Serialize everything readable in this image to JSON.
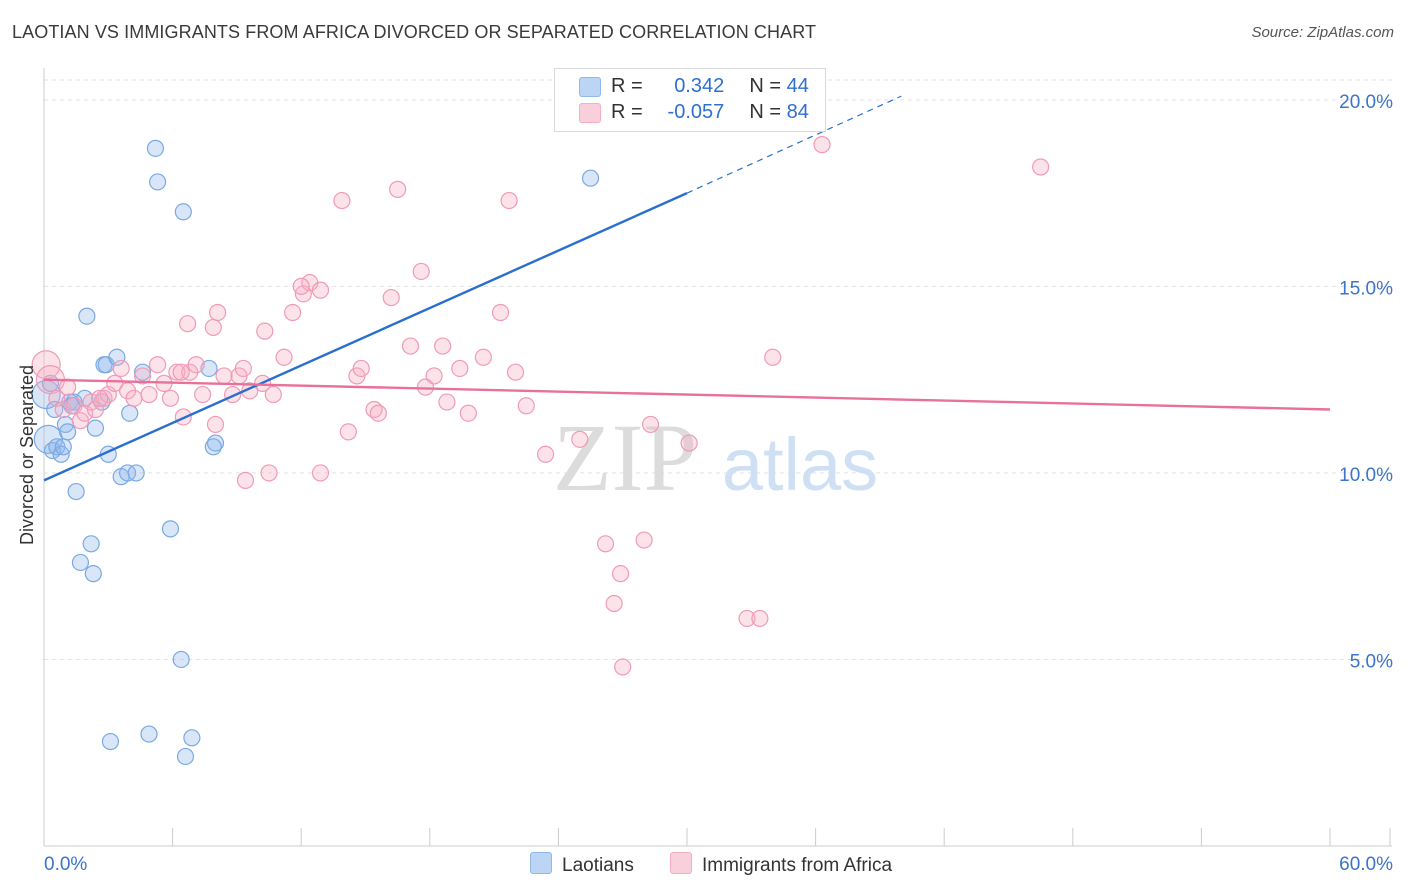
{
  "title": "LAOTIAN VS IMMIGRANTS FROM AFRICA DIVORCED OR SEPARATED CORRELATION CHART",
  "source": "Source: ZipAtlas.com",
  "watermark": {
    "zip": "ZIP",
    "atlas": "atlas"
  },
  "legend": {
    "r_label": "R =",
    "n_label": "N =",
    "rows": [
      {
        "r": "0.342",
        "n": "44"
      },
      {
        "r": "-0.057",
        "n": "84"
      }
    ]
  },
  "chart_data": {
    "type": "scatter",
    "title": "LAOTIAN VS IMMIGRANTS FROM AFRICA DIVORCED OR SEPARATED CORRELATION CHART",
    "ylabel": "Divorced or Separated",
    "xlabel": "",
    "xlim": [
      0,
      60
    ],
    "ylim": [
      0,
      20.8
    ],
    "x_tick_labels": [
      "0.0%",
      "60.0%"
    ],
    "y_ticks": [
      5,
      10,
      15,
      20
    ],
    "y_tick_labels": [
      "5.0%",
      "10.0%",
      "15.0%",
      "20.0%"
    ],
    "grid": true,
    "legend_position": "bottom",
    "series": [
      {
        "name": "Laotians",
        "color": "#8fb8ec",
        "line_color": "#2a6fcf",
        "trend": {
          "x0": 0,
          "y0": 9.8,
          "x1": 30,
          "y1": 17.5,
          "dashed_to_x": 40,
          "dashed_to_y": 20.1
        },
        "points": [
          [
            0.1,
            12.1
          ],
          [
            0.2,
            10.9
          ],
          [
            0.4,
            10.6
          ],
          [
            0.5,
            11.7
          ],
          [
            0.6,
            10.7
          ],
          [
            0.8,
            10.5
          ],
          [
            0.9,
            10.7
          ],
          [
            1.0,
            11.3
          ],
          [
            1.1,
            11.1
          ],
          [
            1.2,
            11.9
          ],
          [
            1.4,
            11.9
          ],
          [
            1.5,
            9.5
          ],
          [
            1.7,
            7.6
          ],
          [
            1.9,
            12.0
          ],
          [
            2.0,
            14.2
          ],
          [
            2.2,
            8.1
          ],
          [
            2.3,
            7.3
          ],
          [
            2.4,
            11.2
          ],
          [
            2.7,
            11.9
          ],
          [
            2.8,
            12.9
          ],
          [
            2.9,
            12.9
          ],
          [
            3.0,
            10.5
          ],
          [
            3.4,
            13.1
          ],
          [
            3.6,
            9.9
          ],
          [
            3.9,
            10.0
          ],
          [
            4.3,
            10.0
          ],
          [
            4.0,
            11.6
          ],
          [
            4.6,
            12.7
          ],
          [
            3.1,
            2.8
          ],
          [
            5.2,
            18.7
          ],
          [
            5.3,
            17.8
          ],
          [
            5.9,
            8.5
          ],
          [
            6.4,
            5.0
          ],
          [
            6.5,
            17.0
          ],
          [
            6.6,
            2.4
          ],
          [
            6.9,
            2.9
          ],
          [
            8.0,
            10.8
          ],
          [
            7.9,
            10.7
          ],
          [
            7.7,
            12.8
          ],
          [
            4.9,
            3.0
          ],
          [
            25.5,
            17.9
          ],
          [
            26.6,
            20.0
          ],
          [
            1.3,
            11.8
          ],
          [
            0.3,
            12.4
          ]
        ]
      },
      {
        "name": "Immigrants from Africa",
        "color": "#f5aec4",
        "line_color": "#e8719a",
        "trend": {
          "x0": 0,
          "y0": 12.5,
          "x1": 60,
          "y1": 11.7
        },
        "points": [
          [
            0.1,
            12.9
          ],
          [
            0.3,
            12.5
          ],
          [
            0.6,
            12.0
          ],
          [
            0.9,
            11.7
          ],
          [
            1.1,
            12.3
          ],
          [
            1.4,
            11.8
          ],
          [
            1.7,
            11.4
          ],
          [
            1.9,
            11.6
          ],
          [
            2.2,
            11.9
          ],
          [
            2.4,
            11.7
          ],
          [
            2.8,
            12.0
          ],
          [
            3.0,
            12.1
          ],
          [
            3.3,
            12.4
          ],
          [
            3.6,
            12.8
          ],
          [
            3.9,
            12.2
          ],
          [
            4.2,
            12.0
          ],
          [
            4.6,
            12.6
          ],
          [
            4.9,
            12.1
          ],
          [
            5.3,
            12.9
          ],
          [
            5.6,
            12.4
          ],
          [
            5.9,
            12.0
          ],
          [
            6.2,
            12.7
          ],
          [
            6.5,
            11.5
          ],
          [
            6.8,
            12.7
          ],
          [
            7.1,
            12.9
          ],
          [
            7.4,
            12.1
          ],
          [
            6.7,
            14.0
          ],
          [
            7.9,
            13.9
          ],
          [
            8.1,
            14.3
          ],
          [
            8.4,
            12.6
          ],
          [
            8.8,
            12.1
          ],
          [
            9.1,
            12.6
          ],
          [
            9.3,
            12.8
          ],
          [
            9.6,
            12.2
          ],
          [
            10.2,
            12.4
          ],
          [
            10.7,
            12.1
          ],
          [
            10.3,
            13.8
          ],
          [
            11.2,
            13.1
          ],
          [
            11.6,
            14.3
          ],
          [
            12.1,
            14.8
          ],
          [
            12.4,
            15.1
          ],
          [
            12.9,
            14.9
          ],
          [
            13.9,
            17.3
          ],
          [
            14.6,
            12.6
          ],
          [
            14.8,
            12.8
          ],
          [
            15.4,
            11.7
          ],
          [
            15.6,
            11.6
          ],
          [
            16.2,
            14.7
          ],
          [
            16.5,
            17.6
          ],
          [
            17.1,
            13.4
          ],
          [
            17.6,
            15.4
          ],
          [
            17.8,
            12.3
          ],
          [
            18.2,
            12.6
          ],
          [
            18.6,
            13.4
          ],
          [
            18.8,
            11.9
          ],
          [
            19.4,
            12.8
          ],
          [
            19.8,
            11.6
          ],
          [
            20.5,
            13.1
          ],
          [
            21.3,
            14.3
          ],
          [
            21.7,
            17.3
          ],
          [
            22.0,
            12.7
          ],
          [
            22.5,
            11.8
          ],
          [
            23.4,
            10.5
          ],
          [
            25.0,
            10.9
          ],
          [
            26.2,
            8.1
          ],
          [
            26.9,
            7.3
          ],
          [
            26.6,
            6.5
          ],
          [
            27.0,
            4.8
          ],
          [
            28.0,
            8.2
          ],
          [
            28.3,
            11.3
          ],
          [
            30.1,
            10.8
          ],
          [
            32.8,
            6.1
          ],
          [
            33.4,
            6.1
          ],
          [
            34.0,
            13.1
          ],
          [
            36.3,
            18.8
          ],
          [
            46.5,
            18.2
          ],
          [
            12.0,
            15.0
          ],
          [
            14.2,
            11.1
          ],
          [
            10.5,
            10.0
          ],
          [
            9.4,
            9.8
          ],
          [
            12.9,
            10.0
          ],
          [
            8.0,
            11.3
          ],
          [
            6.4,
            12.7
          ],
          [
            2.6,
            12.0
          ]
        ]
      }
    ]
  }
}
